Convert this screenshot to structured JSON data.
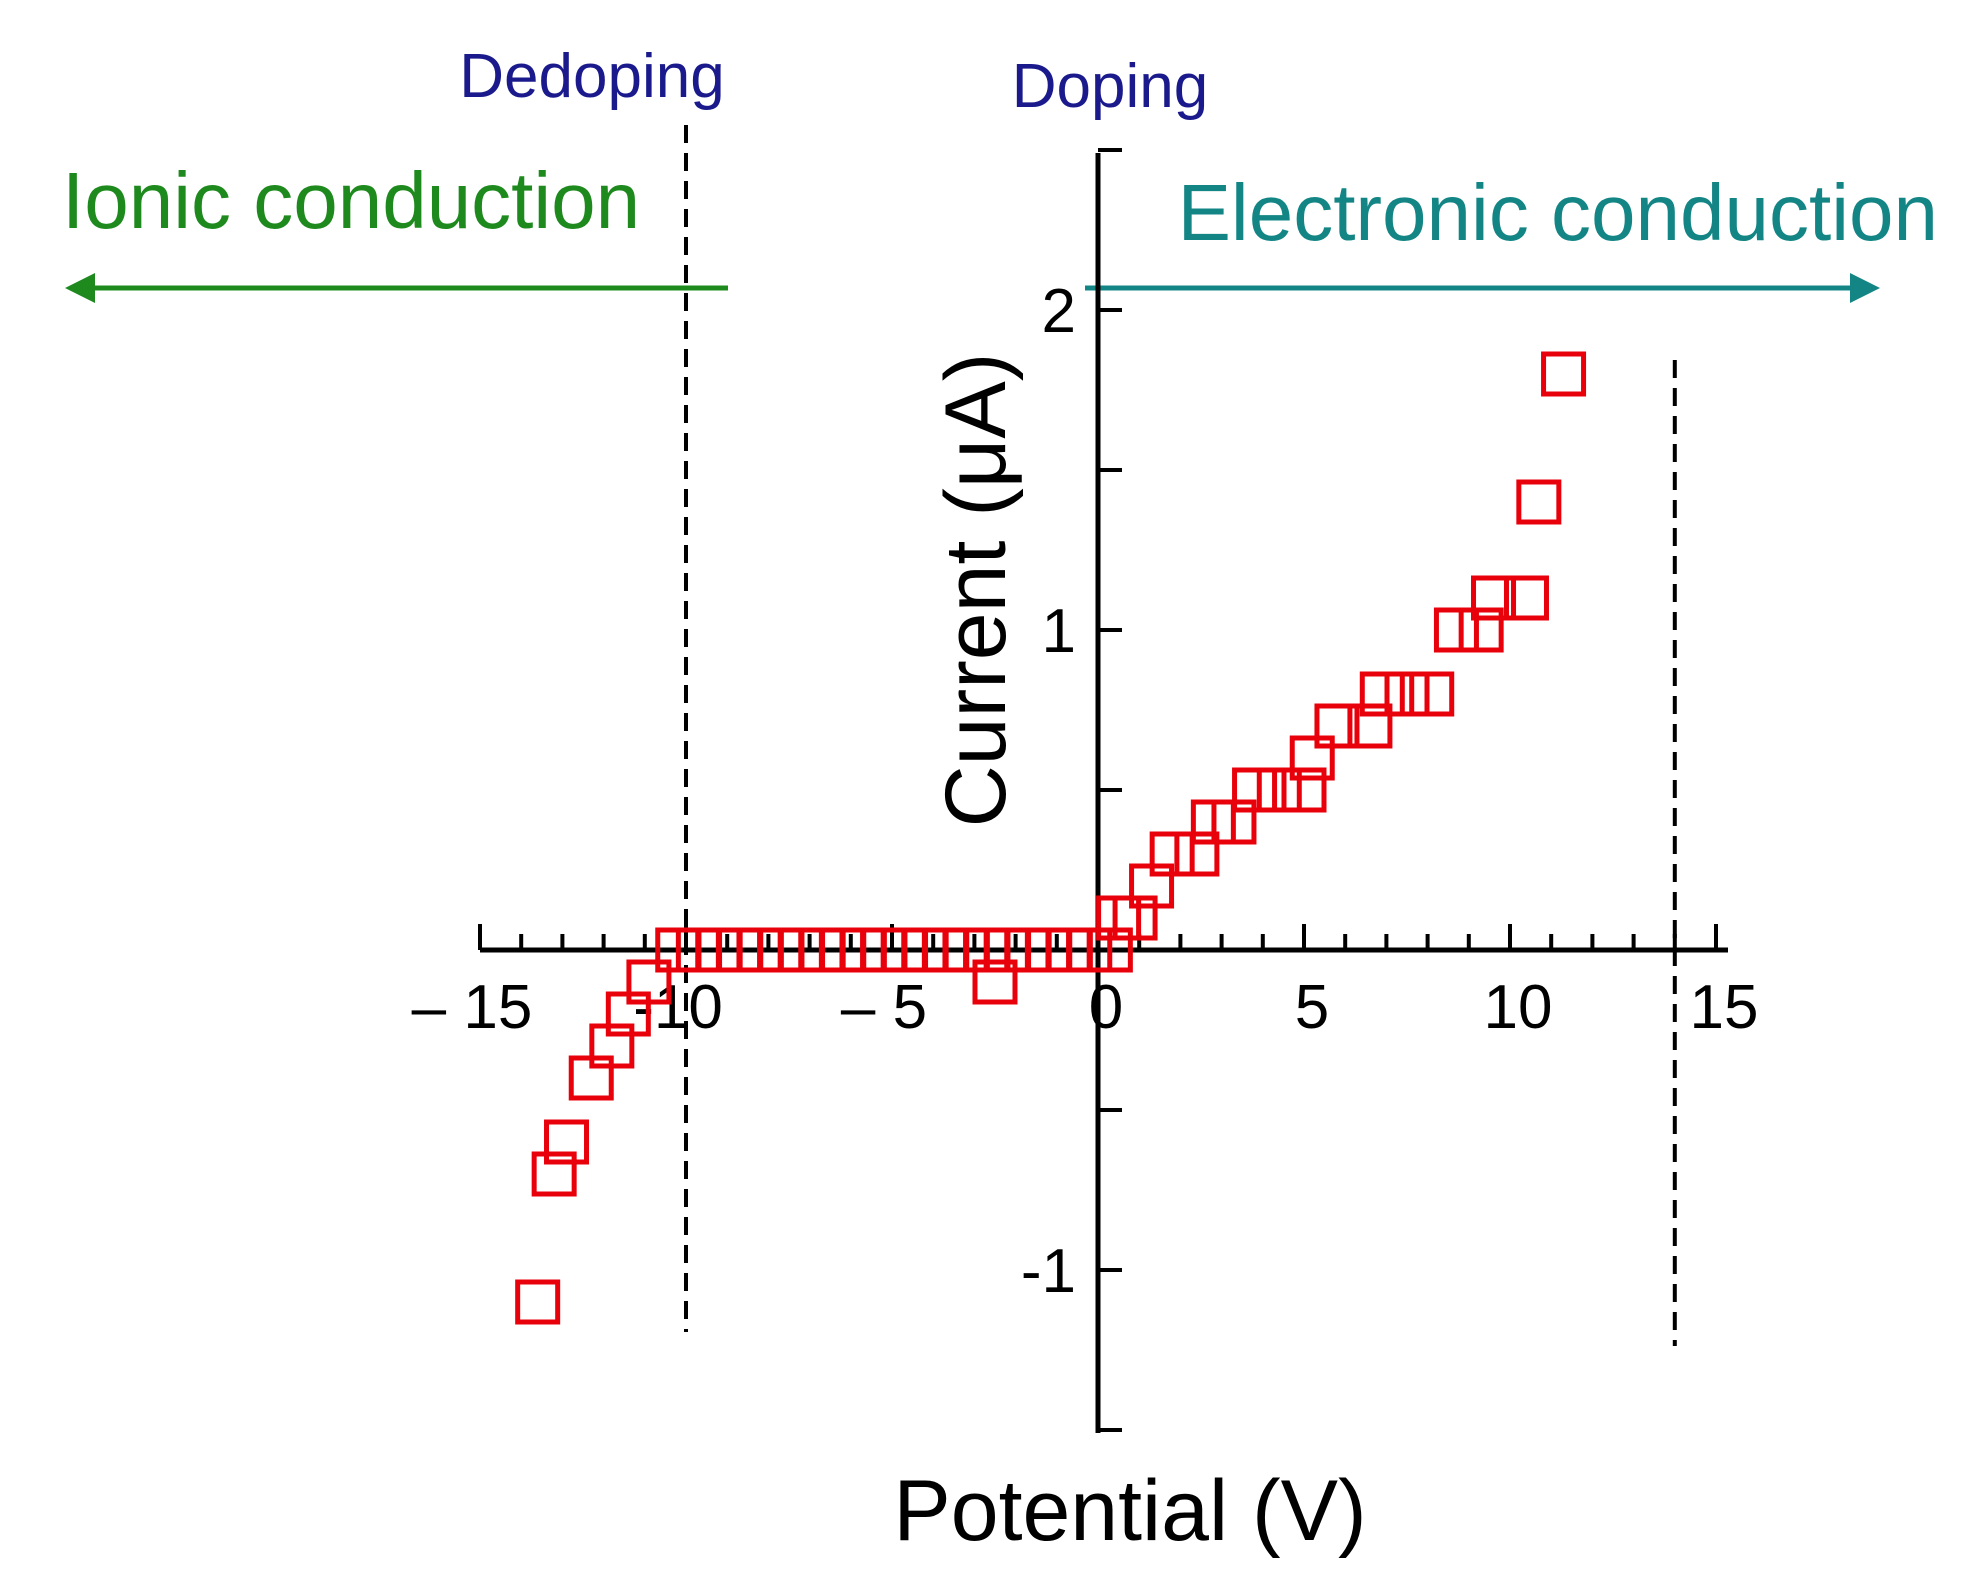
{
  "chart_data": {
    "type": "scatter",
    "title": "",
    "xlabel": "Potential (V)",
    "ylabel": "Current (μA)",
    "xlim": [
      -15,
      15
    ],
    "ylim": [
      -1.5,
      2.5
    ],
    "x_ticks": [
      {
        "value": -15,
        "label": "– 15"
      },
      {
        "value": -10,
        "label": "-10"
      },
      {
        "value": -5,
        "label": "– 5"
      },
      {
        "value": 0,
        "label": "0"
      },
      {
        "value": 5,
        "label": "5"
      },
      {
        "value": 10,
        "label": "10"
      },
      {
        "value": 15,
        "label": "15"
      }
    ],
    "y_ticks": [
      {
        "value": -1,
        "label": "-1"
      },
      {
        "value": 0,
        "label": "0"
      },
      {
        "value": 1,
        "label": "1"
      },
      {
        "value": 2,
        "label": "2"
      }
    ],
    "series": [
      {
        "name": "Current",
        "color": "#e8000b",
        "marker": "open-square",
        "points": [
          [
            -13.6,
            -1.1
          ],
          [
            -13.2,
            -0.7
          ],
          [
            -12.9,
            -0.6
          ],
          [
            -12.3,
            -0.4
          ],
          [
            -11.8,
            -0.3
          ],
          [
            -11.4,
            -0.2
          ],
          [
            -10.9,
            -0.1
          ],
          [
            -10.2,
            0.0
          ],
          [
            -9.7,
            0.0
          ],
          [
            -9.2,
            0.0
          ],
          [
            -8.7,
            0.0
          ],
          [
            -8.2,
            0.0
          ],
          [
            -7.7,
            0.0
          ],
          [
            -7.2,
            0.0
          ],
          [
            -6.7,
            0.0
          ],
          [
            -6.2,
            0.0
          ],
          [
            -5.7,
            0.0
          ],
          [
            -5.2,
            0.0
          ],
          [
            -4.7,
            0.0
          ],
          [
            -4.2,
            0.0
          ],
          [
            -3.7,
            0.0
          ],
          [
            -3.2,
            0.0
          ],
          [
            -2.7,
            0.0
          ],
          [
            -2.2,
            0.0
          ],
          [
            -2.5,
            -0.1
          ],
          [
            -1.7,
            0.0
          ],
          [
            -1.2,
            0.0
          ],
          [
            -0.7,
            0.0
          ],
          [
            -0.2,
            0.0
          ],
          [
            0.3,
            0.0
          ],
          [
            0.5,
            0.1
          ],
          [
            0.9,
            0.1
          ],
          [
            1.3,
            0.2
          ],
          [
            1.8,
            0.3
          ],
          [
            2.4,
            0.3
          ],
          [
            2.8,
            0.4
          ],
          [
            3.3,
            0.4
          ],
          [
            3.8,
            0.5
          ],
          [
            4.4,
            0.5
          ],
          [
            5.0,
            0.5
          ],
          [
            5.2,
            0.6
          ],
          [
            5.8,
            0.7
          ],
          [
            6.6,
            0.7
          ],
          [
            6.9,
            0.8
          ],
          [
            7.5,
            0.8
          ],
          [
            8.1,
            0.8
          ],
          [
            8.7,
            1.0
          ],
          [
            9.3,
            1.0
          ],
          [
            9.6,
            1.1
          ],
          [
            10.4,
            1.1
          ],
          [
            10.7,
            1.4
          ],
          [
            11.3,
            1.8
          ]
        ]
      }
    ],
    "annotations": {
      "dedoping": {
        "text": "Dedoping",
        "color": "#1a1a8c",
        "x": -10.0
      },
      "doping": {
        "text": "Doping",
        "color": "#1a1a8c",
        "x": 14.0
      },
      "ionic": {
        "text": "Ionic conduction",
        "color": "#1e8a1e",
        "direction": "left"
      },
      "electronic": {
        "text": "Electronic conduction",
        "color": "#138585",
        "direction": "right"
      }
    },
    "grid": false,
    "legend": "none"
  }
}
